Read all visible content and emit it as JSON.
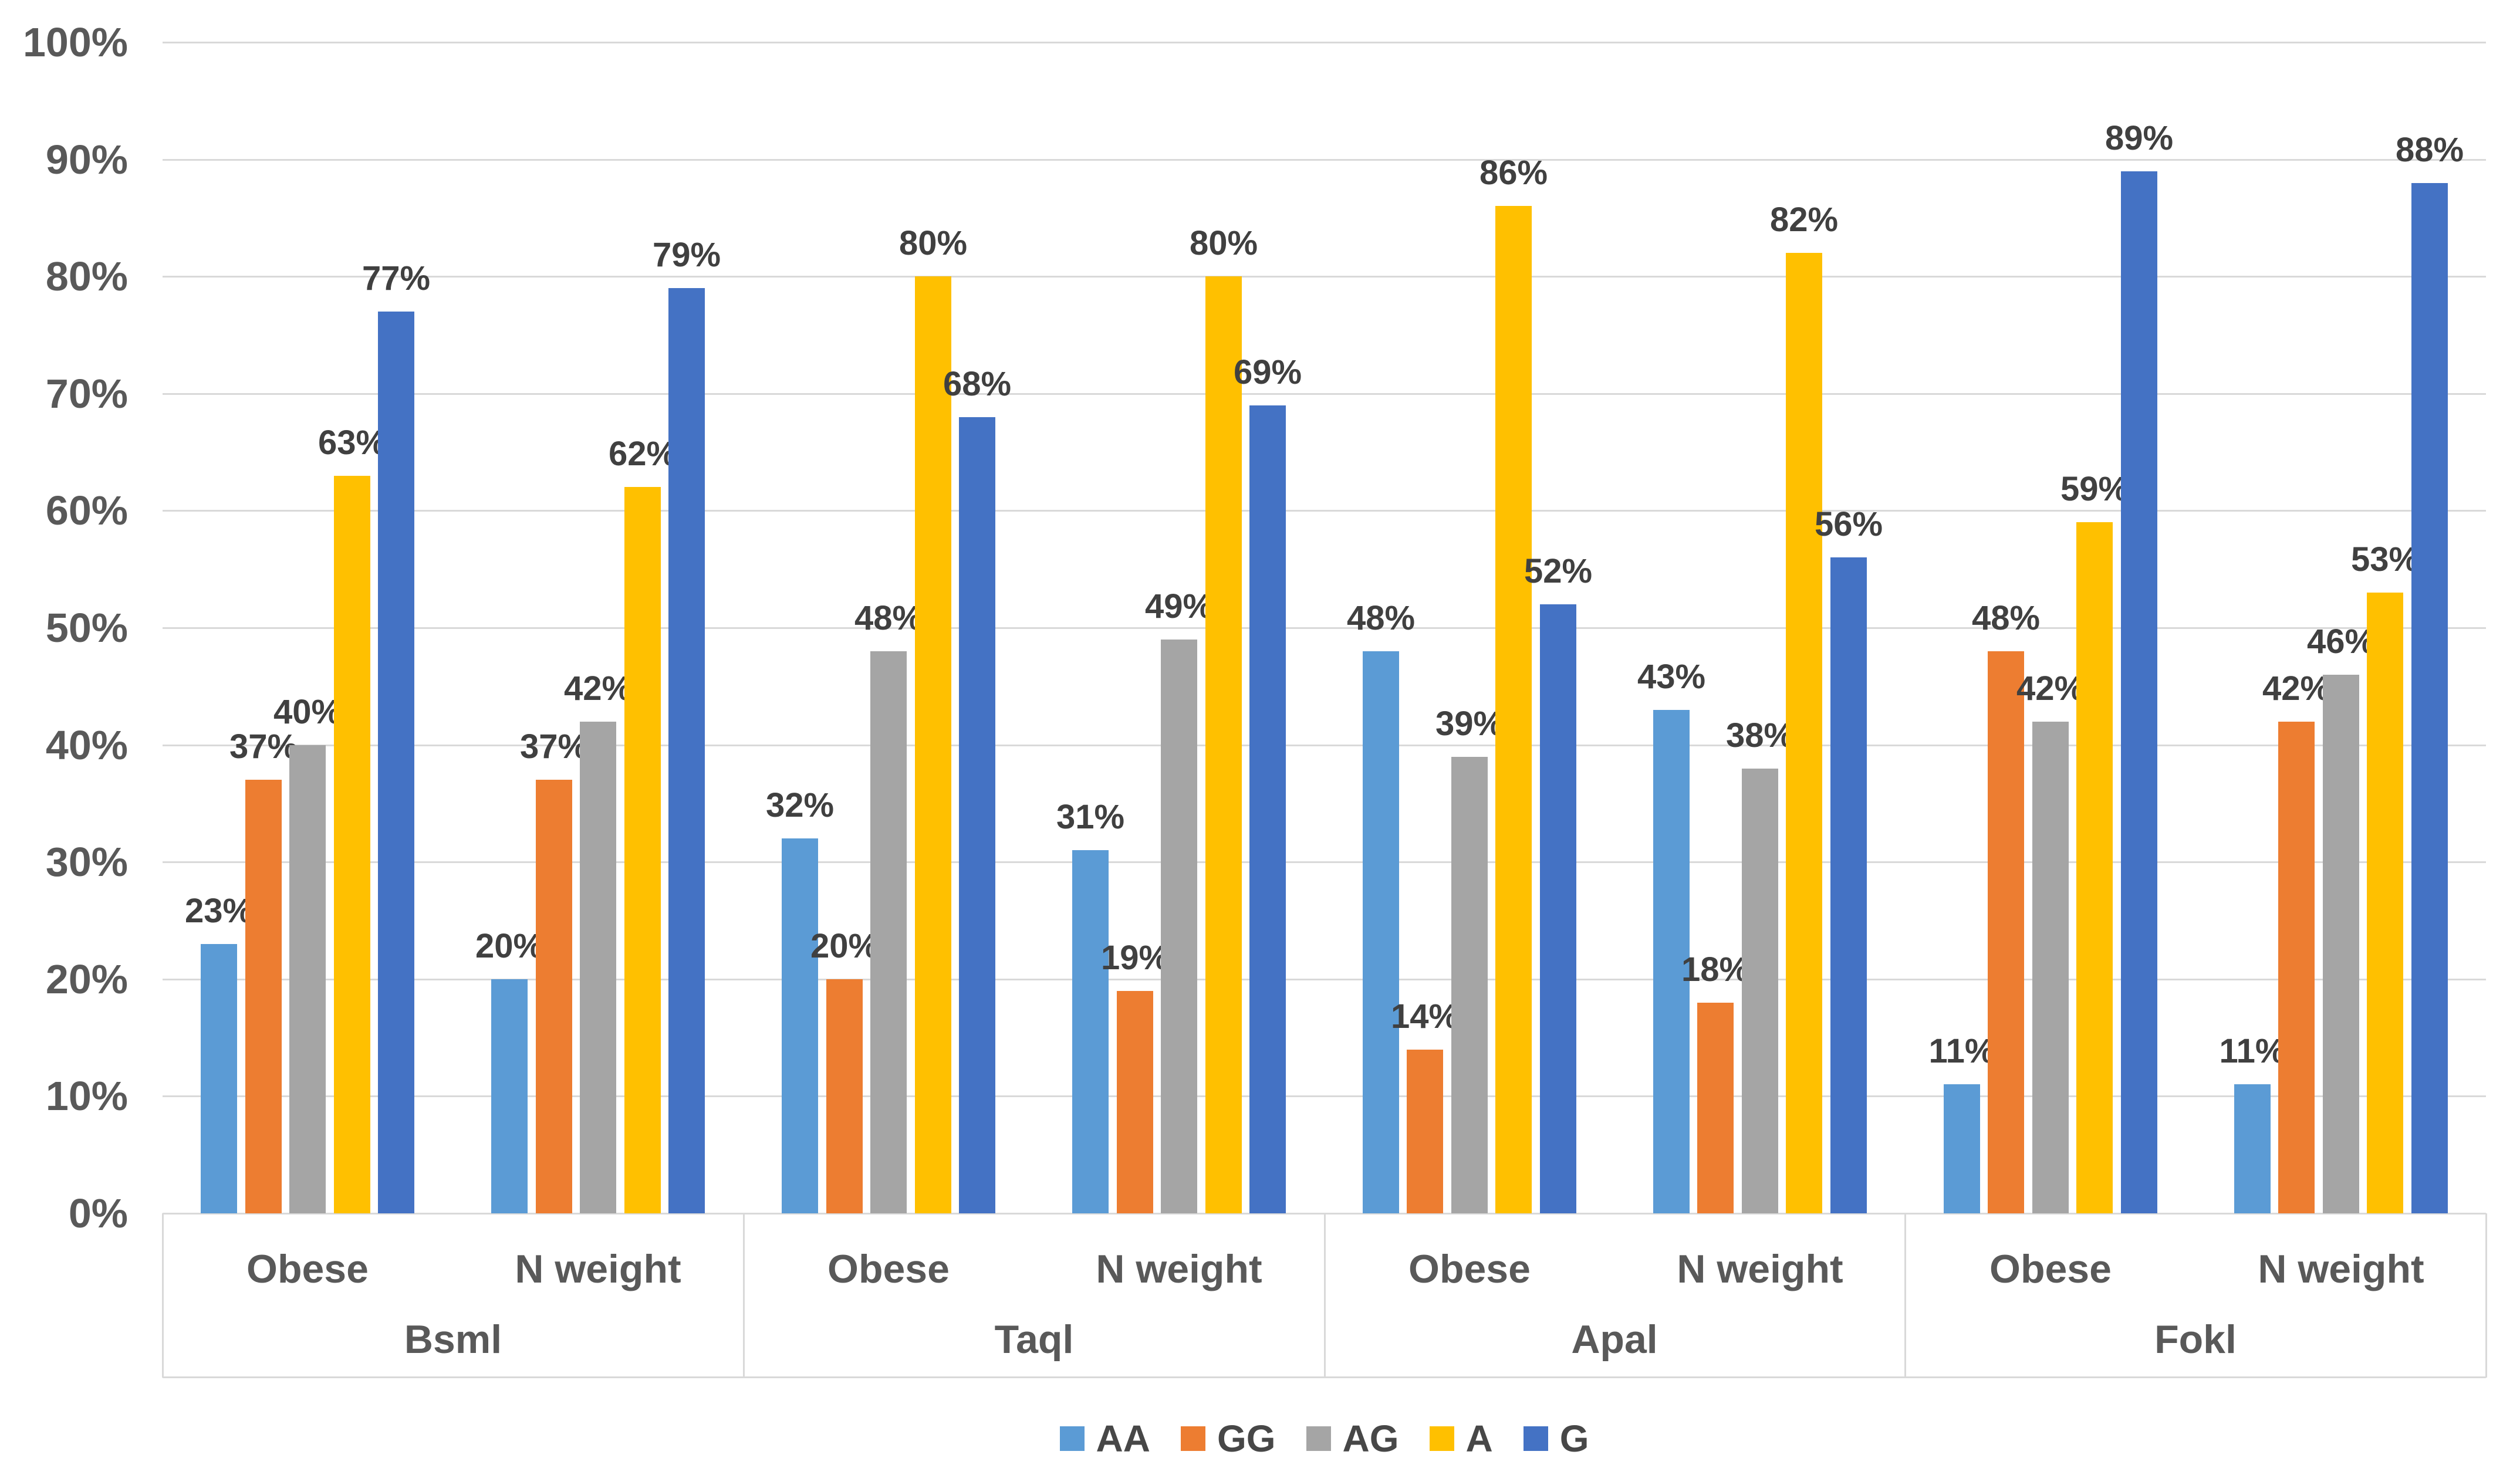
{
  "page": {
    "background": "#FFFFFF"
  },
  "chart_data": {
    "type": "bar",
    "title": "",
    "xlabel": "",
    "ylabel": "",
    "ylim": [
      0,
      100
    ],
    "ytick_step": 10,
    "ytick_labels": [
      "0%",
      "10%",
      "20%",
      "30%",
      "40%",
      "50%",
      "60%",
      "70%",
      "80%",
      "90%",
      "100%"
    ],
    "grid": true,
    "legend_position": "bottom",
    "colors": {
      "grid_line": "#D9D9D9",
      "axis_line": "#D9D9D9",
      "tick_text": "#595959",
      "data_label_text": "#404040",
      "legend_text": "#474747"
    },
    "series": [
      {
        "name": "AA",
        "color": "#5B9BD5"
      },
      {
        "name": "GG",
        "color": "#ED7D31"
      },
      {
        "name": "AG",
        "color": "#A5A5A5"
      },
      {
        "name": "A",
        "color": "#FFC000"
      },
      {
        "name": "G",
        "color": "#4472C4"
      }
    ],
    "groups": [
      {
        "label": "Bsml",
        "clusters": [
          {
            "label": "Obese",
            "values": [
              23,
              37,
              40,
              63,
              77
            ],
            "labels": [
              "23%",
              "37%",
              "40%",
              "63%",
              "77%"
            ]
          },
          {
            "label": "N weight",
            "values": [
              20,
              37,
              42,
              62,
              79
            ],
            "labels": [
              "20%",
              "37%",
              "42%",
              "62%",
              "79%"
            ]
          }
        ]
      },
      {
        "label": "Taql",
        "clusters": [
          {
            "label": "Obese",
            "values": [
              32,
              20,
              48,
              80,
              68
            ],
            "labels": [
              "32%",
              "20%",
              "48%",
              "80%",
              "68%"
            ]
          },
          {
            "label": "N weight",
            "values": [
              31,
              19,
              49,
              80,
              69
            ],
            "labels": [
              "31%",
              "19%",
              "49%",
              "80%",
              "69%"
            ]
          }
        ]
      },
      {
        "label": "Apal",
        "clusters": [
          {
            "label": "Obese",
            "values": [
              48,
              14,
              39,
              86,
              52
            ],
            "labels": [
              "48%",
              "14%",
              "39%",
              "86%",
              "52%"
            ]
          },
          {
            "label": "N weight",
            "values": [
              43,
              18,
              38,
              82,
              56
            ],
            "labels": [
              "43%",
              "18%",
              "38%",
              "82%",
              "56%"
            ]
          }
        ]
      },
      {
        "label": "Fokl",
        "clusters": [
          {
            "label": "Obese",
            "values": [
              11,
              48,
              42,
              59,
              89
            ],
            "labels": [
              "11%",
              "48%",
              "42%",
              "59%",
              "89%"
            ]
          },
          {
            "label": "N weight",
            "values": [
              11,
              42,
              46,
              53,
              88
            ],
            "labels": [
              "11%",
              "42%",
              "46%",
              "53%",
              "88%"
            ]
          }
        ]
      }
    ]
  }
}
